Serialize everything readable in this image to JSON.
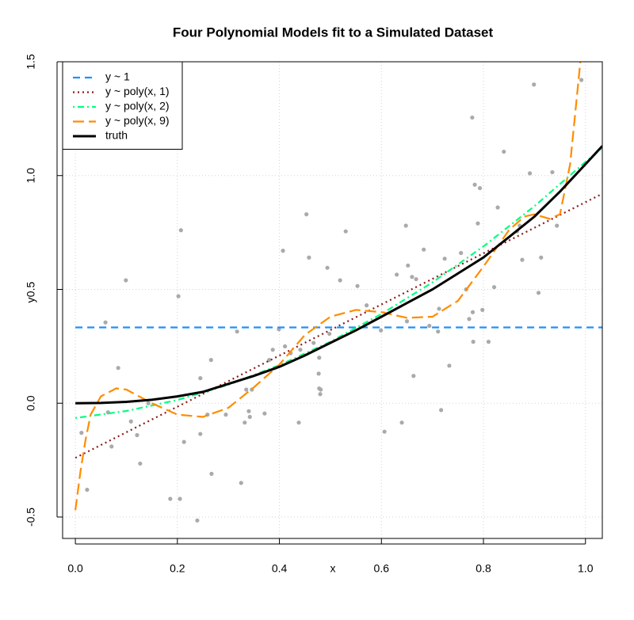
{
  "chart_data": {
    "type": "scatter",
    "title": "Four Polynomial Models fit to a Simulated Dataset",
    "x_label": "x",
    "y_label": "y",
    "xlim": [
      -0.025,
      1.033
    ],
    "ylim": [
      -0.594,
      1.5
    ],
    "xticks": [
      {
        "value": 0,
        "label": "0.0"
      },
      0.2,
      0.4,
      0.6,
      0.8,
      {
        "value": 1,
        "label": "1.0"
      }
    ],
    "yticks": [
      -0.5,
      {
        "value": 0,
        "label": "0.0"
      },
      0.5,
      {
        "value": 1,
        "label": "1.0"
      },
      1.5
    ],
    "grid": true,
    "legend": "top-left",
    "point_color": "#aaaaaa",
    "x": [
      0.012,
      0.023,
      0.059,
      0.064,
      0.071,
      0.084,
      0.099,
      0.109,
      0.121,
      0.127,
      0.143,
      0.186,
      0.202,
      0.205,
      0.207,
      0.213,
      0.239,
      0.245,
      0.245,
      0.259,
      0.266,
      0.267,
      0.295,
      0.317,
      0.325,
      0.332,
      0.335,
      0.34,
      0.342,
      0.346,
      0.371,
      0.38,
      0.387,
      0.391,
      0.399,
      0.407,
      0.411,
      0.422,
      0.438,
      0.441,
      0.453,
      0.458,
      0.467,
      0.477,
      0.478,
      0.478,
      0.48,
      0.481,
      0.494,
      0.498,
      0.519,
      0.53,
      0.553,
      0.571,
      0.599,
      0.606,
      0.63,
      0.64,
      0.648,
      0.65,
      0.652,
      0.66,
      0.663,
      0.668,
      0.683,
      0.694,
      0.711,
      0.713,
      0.717,
      0.724,
      0.733,
      0.756,
      0.766,
      0.772,
      0.778,
      0.779,
      0.78,
      0.783,
      0.789,
      0.793,
      0.798,
      0.81,
      0.821,
      0.828,
      0.84,
      0.866,
      0.871,
      0.876,
      0.891,
      0.899,
      0.908,
      0.913,
      0.935,
      0.944,
      0.992
    ],
    "y": [
      -0.13,
      -0.38,
      0.355,
      -0.04,
      -0.19,
      0.155,
      0.54,
      -0.08,
      -0.14,
      -0.265,
      0.0,
      -0.42,
      0.47,
      -0.42,
      0.76,
      -0.17,
      -0.515,
      -0.135,
      0.11,
      -0.05,
      0.19,
      -0.31,
      -0.05,
      0.315,
      -0.35,
      -0.085,
      0.06,
      -0.035,
      -0.06,
      0.06,
      -0.045,
      0.19,
      0.235,
      0.155,
      0.325,
      0.67,
      0.25,
      0.22,
      -0.085,
      0.235,
      0.83,
      0.64,
      0.265,
      0.13,
      0.2,
      0.065,
      0.04,
      0.06,
      0.595,
      0.305,
      0.54,
      0.755,
      0.515,
      0.43,
      0.32,
      -0.125,
      0.565,
      -0.085,
      0.78,
      0.36,
      0.605,
      0.555,
      0.12,
      0.545,
      0.675,
      0.34,
      0.315,
      0.415,
      -0.03,
      0.635,
      0.165,
      0.66,
      0.5,
      0.37,
      1.255,
      0.4,
      0.27,
      0.96,
      0.79,
      0.945,
      0.41,
      0.27,
      0.51,
      0.86,
      1.105,
      0.755,
      0.78,
      0.63,
      1.01,
      1.4,
      0.485,
      0.64,
      1.015,
      0.78,
      1.42
    ],
    "lines": [
      {
        "name": "y ~ 1",
        "color": "#1e90ff",
        "dash": "9,6",
        "width": 2.2,
        "x": [
          0,
          1.033
        ],
        "values": [
          0.333,
          0.333
        ]
      },
      {
        "name": "y ~ poly(x, 1)",
        "color": "#8b1a1a",
        "dash": "2,4",
        "width": 2.2,
        "x": [
          0,
          1.033
        ],
        "values": [
          -0.24,
          0.92
        ]
      },
      {
        "name": "y ~ poly(x, 2)",
        "color": "#00ff7f",
        "dash": "2,4,8,4",
        "width": 2.2,
        "x": [
          0,
          0.1,
          0.2,
          0.3,
          0.4,
          0.5,
          0.6,
          0.7,
          0.8,
          0.9,
          1.0,
          1.033
        ],
        "values": [
          -0.065,
          -0.034,
          0.014,
          0.081,
          0.167,
          0.27,
          0.392,
          0.531,
          0.689,
          0.866,
          1.06,
          1.122
        ]
      },
      {
        "name": "y ~ poly(x, 9)",
        "color": "#ff8c00",
        "dash": "14,6",
        "width": 2.2,
        "x": [
          0,
          0.01,
          0.02,
          0.03,
          0.05,
          0.08,
          0.1,
          0.15,
          0.2,
          0.25,
          0.3,
          0.35,
          0.4,
          0.45,
          0.5,
          0.55,
          0.6,
          0.65,
          0.7,
          0.75,
          0.8,
          0.85,
          0.88,
          0.9,
          0.93,
          0.95,
          0.97,
          0.99
        ],
        "values": [
          -0.47,
          -0.3,
          -0.16,
          -0.05,
          0.03,
          0.065,
          0.06,
          0.0,
          -0.05,
          -0.06,
          -0.02,
          0.07,
          0.17,
          0.3,
          0.38,
          0.41,
          0.4,
          0.375,
          0.38,
          0.45,
          0.6,
          0.76,
          0.82,
          0.83,
          0.81,
          0.83,
          1.05,
          1.5
        ]
      },
      {
        "name": "truth",
        "color": "#000000",
        "dash": "",
        "width": 3,
        "x": [
          0,
          0.05,
          0.1,
          0.15,
          0.2,
          0.25,
          0.3,
          0.35,
          0.4,
          0.45,
          0.5,
          0.55,
          0.6,
          0.65,
          0.7,
          0.75,
          0.8,
          0.85,
          0.9,
          0.95,
          1.0,
          1.033
        ],
        "values": [
          0,
          0.001,
          0.006,
          0.015,
          0.03,
          0.05,
          0.085,
          0.12,
          0.16,
          0.21,
          0.265,
          0.32,
          0.38,
          0.44,
          0.5,
          0.57,
          0.64,
          0.73,
          0.82,
          0.93,
          1.05,
          1.13
        ]
      }
    ]
  }
}
